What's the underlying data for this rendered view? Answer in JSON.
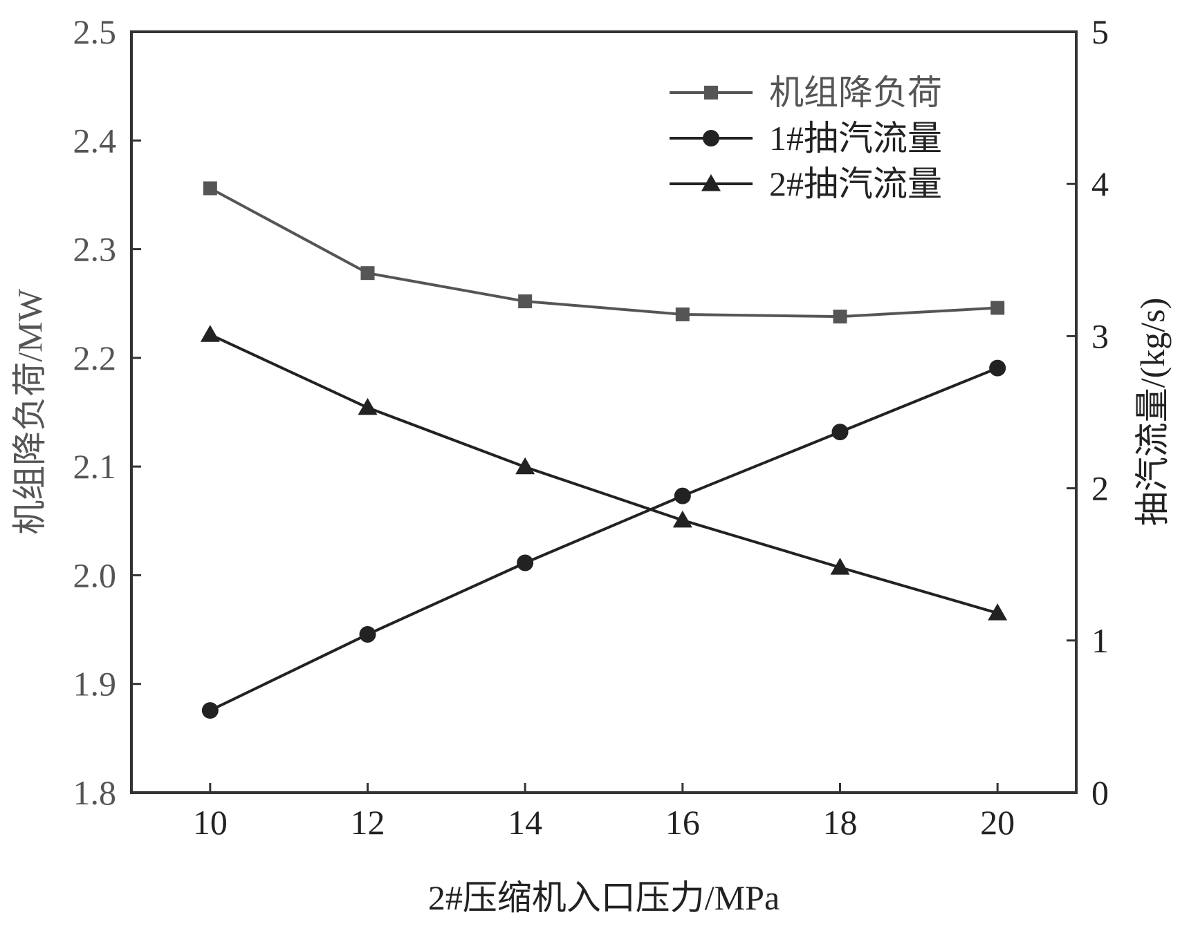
{
  "chart_data": {
    "type": "line",
    "xlabel": "2#压缩机入口压力/MPa",
    "ylabel_left": "机组降负荷/MW",
    "ylabel_right": "抽汽流量/(kg/s)",
    "xlim": [
      9,
      21
    ],
    "ylim_left": [
      1.8,
      2.5
    ],
    "ylim_right": [
      0,
      5
    ],
    "x_ticks": [
      10,
      12,
      14,
      16,
      18,
      20
    ],
    "y_left_ticks": [
      "1.8",
      "1.9",
      "2.0",
      "2.1",
      "2.2",
      "2.3",
      "2.4",
      "2.5"
    ],
    "y_right_ticks": [
      "0",
      "1",
      "2",
      "3",
      "4",
      "5"
    ],
    "grid": false,
    "legend_position": "top-right",
    "x": [
      10,
      12,
      14,
      16,
      18,
      20
    ],
    "series": [
      {
        "name": "机组降负荷",
        "axis": "left",
        "marker": "square",
        "color": "#555555",
        "values": [
          2.356,
          2.278,
          2.252,
          2.24,
          2.238,
          2.246
        ]
      },
      {
        "name": "1#抽汽流量",
        "axis": "right",
        "marker": "circle",
        "color": "#222222",
        "values": [
          0.54,
          1.04,
          1.51,
          1.95,
          2.37,
          2.79
        ]
      },
      {
        "name": "2#抽汽流量",
        "axis": "right",
        "marker": "triangle",
        "color": "#222222",
        "values": [
          3.01,
          2.53,
          2.14,
          1.79,
          1.48,
          1.18
        ]
      }
    ]
  }
}
